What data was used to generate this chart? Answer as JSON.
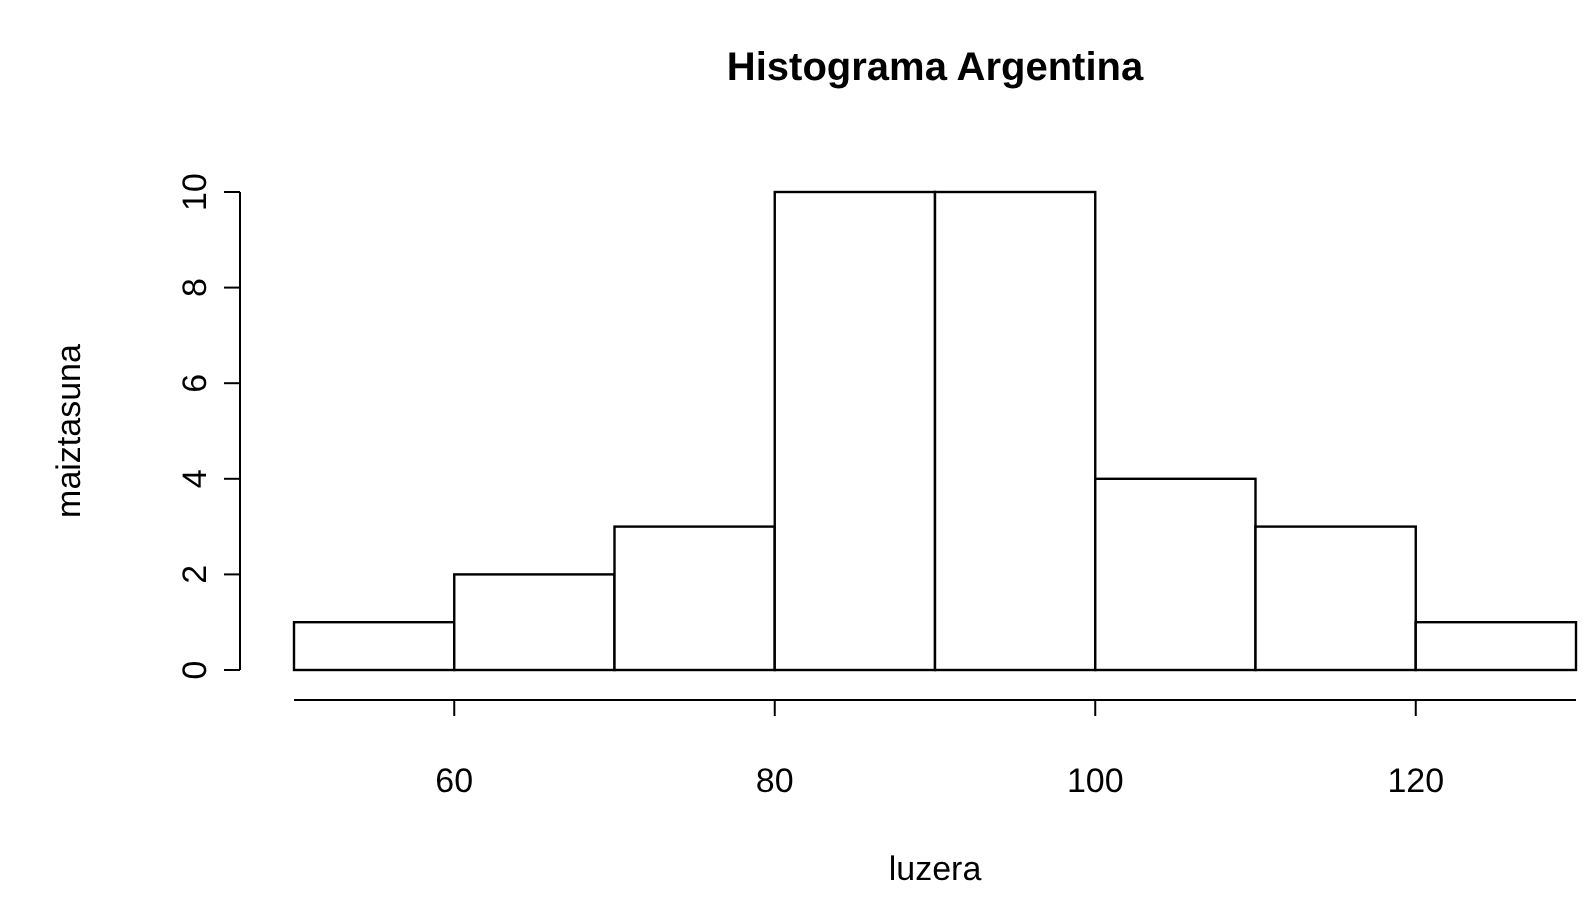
{
  "chart_data": {
    "type": "histogram",
    "title": "Histograma Argentina",
    "xlabel": "luzera",
    "ylabel": "maiztasuna",
    "bins": [
      50,
      60,
      70,
      80,
      90,
      100,
      110,
      120,
      130
    ],
    "values": [
      1,
      2,
      3,
      10,
      10,
      4,
      3,
      1
    ],
    "color": "#ffffff",
    "xlim": [
      50,
      130
    ],
    "xticks": [
      60,
      80,
      100,
      120
    ],
    "ylim": [
      0,
      10
    ],
    "yticks": [
      0,
      2,
      4,
      6,
      8,
      10
    ],
    "grid": false
  }
}
